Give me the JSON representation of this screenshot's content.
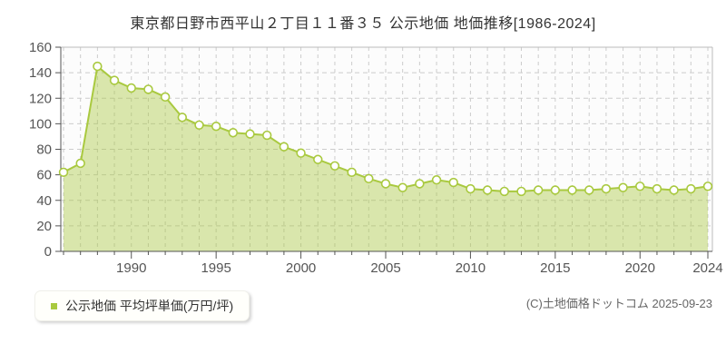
{
  "title": "東京都日野市西平山２丁目１１番３５ 公示地価 地価推移[1986-2024]",
  "legend": {
    "label": "公示地価 平均坪単価(万円/坪)",
    "marker_color": "#a9c93f"
  },
  "copyright": "(C)土地価格ドットコム 2025-09-23",
  "colors": {
    "line": "#a9c93f",
    "fill": "rgba(169,201,63,0.42)",
    "point_fill": "#ffffff",
    "grid": "#cccccc",
    "border": "#bbbbbb",
    "axis": "#555555",
    "tick_text": "#555555",
    "plot_bg": "#fcfcfc"
  },
  "chart_data": {
    "type": "area",
    "title": "東京都日野市西平山２丁目１１番３５ 公示地価 地価推移[1986-2024]",
    "series_name": "公示地価 平均坪単価(万円/坪)",
    "unit": "万円/坪",
    "x": [
      1986,
      1987,
      1988,
      1989,
      1990,
      1991,
      1992,
      1993,
      1994,
      1995,
      1996,
      1997,
      1998,
      1999,
      2000,
      2001,
      2002,
      2003,
      2004,
      2005,
      2006,
      2007,
      2008,
      2009,
      2010,
      2011,
      2012,
      2013,
      2014,
      2015,
      2016,
      2017,
      2018,
      2019,
      2020,
      2021,
      2022,
      2023,
      2024
    ],
    "values": [
      62,
      69,
      145,
      134,
      128,
      127,
      121,
      105,
      99,
      98,
      93,
      92,
      91,
      82,
      77,
      72,
      67,
      62,
      57,
      53,
      50,
      53,
      56,
      54,
      49,
      48,
      47,
      47,
      48,
      48,
      48,
      48,
      49,
      50,
      51,
      49,
      48,
      49,
      51
    ],
    "ylim": [
      0,
      160
    ],
    "yticks": [
      0,
      20,
      40,
      60,
      80,
      100,
      120,
      140,
      160
    ],
    "xtick_labels": [
      1990,
      1995,
      2000,
      2005,
      2010,
      2015,
      2020,
      2024
    ],
    "grid": true,
    "legend_position": "bottom-left"
  }
}
